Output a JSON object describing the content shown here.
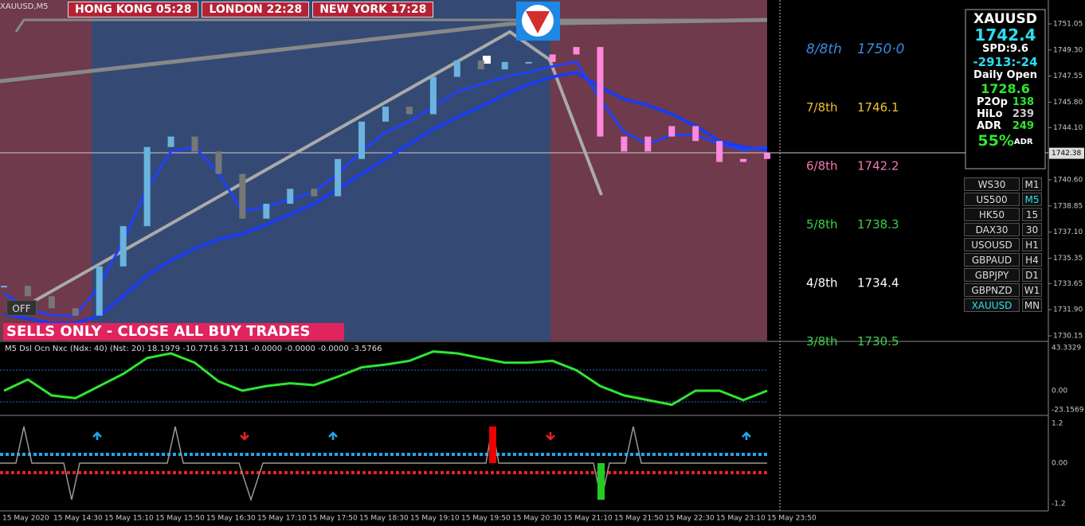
{
  "header": {
    "symbol": "XAUUSD,M5",
    "clocks": [
      "HONG KONG 05:28",
      "LONDON 22:28",
      "NEW YORK 17:28"
    ]
  },
  "price_axis": {
    "ticks": [
      "1751.05",
      "1749.30",
      "1747.55",
      "1745.80",
      "1744.10",
      "1740.60",
      "1738.85",
      "1737.10",
      "1735.35",
      "1733.65",
      "1731.90",
      "1730.15"
    ],
    "current": "1742.38"
  },
  "price_series": {
    "close": [
      1733.5,
      1732.8,
      1732.0,
      1731.5,
      1734.8,
      1737.5,
      1742.8,
      1743.5,
      1742.5,
      1741.0,
      1738.0,
      1739.0,
      1740.0,
      1739.5,
      1742.0,
      1744.5,
      1745.5,
      1745.0,
      1747.5,
      1748.6,
      1748.0,
      1748.5,
      1748.5,
      1749.0,
      1749.5,
      1743.5,
      1742.5,
      1743.5,
      1744.2,
      1743.2,
      1741.8,
      1742.0,
      1742.4
    ],
    "ma": [
      1733.0,
      1732.0,
      1731.5,
      1731.5,
      1733.5,
      1736.5,
      1740.0,
      1742.5,
      1742.8,
      1741.0,
      1738.5,
      1738.8,
      1739.3,
      1739.8,
      1741.0,
      1742.5,
      1743.8,
      1744.5,
      1745.5,
      1746.5,
      1747.0,
      1747.5,
      1747.8,
      1748.2,
      1748.5,
      1746.0,
      1743.8,
      1743.0,
      1743.6,
      1743.6,
      1743.0,
      1742.6,
      1742.8
    ],
    "band": [
      1731.6,
      1731.3,
      1731.0,
      1731.0,
      1731.5,
      1732.8,
      1734.2,
      1735.2,
      1736.0,
      1736.6,
      1737.0,
      1737.6,
      1738.3,
      1739.0,
      1740.0,
      1741.0,
      1742.0,
      1743.0,
      1744.0,
      1744.8,
      1745.5,
      1746.3,
      1747.0,
      1747.5,
      1747.8,
      1746.8,
      1746.0,
      1745.6,
      1745.0,
      1744.2,
      1743.2,
      1742.8,
      1742.6
    ]
  },
  "murrey_levels": [
    {
      "name": "8/8th",
      "price": "1750·0"
    },
    {
      "name": "7/8th",
      "price": "1746.1"
    },
    {
      "name": "6/8th",
      "price": "1742.2"
    },
    {
      "name": "5/8th",
      "price": "1738.3"
    },
    {
      "name": "4/8th",
      "price": "1734.4"
    },
    {
      "name": "3/8th",
      "price": "1730.5"
    }
  ],
  "info_panel": {
    "symbol": "XAUUSD",
    "price": "1742.4",
    "spread": "SPD:9.6",
    "swap": "-2913:-24",
    "daily_open_label": "Daily Open",
    "daily_open": "1728.6",
    "stats": [
      {
        "label": "P2Op",
        "value": "138"
      },
      {
        "label": "HiLo",
        "value": "239"
      },
      {
        "label": "ADR",
        "value": "249"
      }
    ],
    "adr_pct": "55%",
    "adr_suffix": "ADR"
  },
  "symbols": [
    {
      "symbol": "WS30",
      "tf": "M1"
    },
    {
      "symbol": "US500",
      "tf": "M5"
    },
    {
      "symbol": "HK50",
      "tf": "15"
    },
    {
      "symbol": "DAX30",
      "tf": "30"
    },
    {
      "symbol": "USOUSD",
      "tf": "H1"
    },
    {
      "symbol": "GBPAUD",
      "tf": "H4"
    },
    {
      "symbol": "GBPJPY",
      "tf": "D1"
    },
    {
      "symbol": "GBPNZD",
      "tf": "W1"
    },
    {
      "symbol": "XAUUSD",
      "tf": "MN"
    }
  ],
  "off_button": "OFF",
  "banner": "SELLS ONLY - CLOSE ALL BUY TRADES",
  "oscillator": {
    "label": "M5 Dsl Ocn Nxc (Ndx: 40) (Nst: 20) 18.1979 -10.7716 3.7131 -0.0000 -0.0000 -0.0000 -3.5766",
    "ticks": [
      "43.3329",
      "0.00",
      "-23.1569"
    ],
    "values": [
      0,
      12,
      -5,
      -8,
      5,
      18,
      35,
      40,
      30,
      10,
      0,
      5,
      8,
      6,
      15,
      25,
      28,
      32,
      42,
      40,
      35,
      30,
      30,
      32,
      22,
      5,
      -5,
      -10,
      -15,
      0,
      0,
      -10,
      0
    ]
  },
  "signal_pane": {
    "ticks": [
      "1.2",
      "0.00",
      "-1.2"
    ]
  },
  "time_axis": [
    "15 May 2020",
    "15 May 14:30",
    "15 May 15:10",
    "15 May 15:50",
    "15 May 16:30",
    "15 May 17:10",
    "15 May 17:50",
    "15 May 18:30",
    "15 May 19:10",
    "15 May 19:50",
    "15 May 20:30",
    "15 May 21:10",
    "15 May 21:50",
    "15 May 22:30",
    "15 May 23:10",
    "15 May 23:50"
  ]
}
